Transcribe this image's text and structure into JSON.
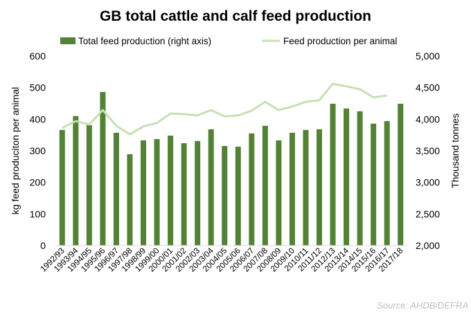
{
  "chart_data": {
    "type": "bar+line",
    "title": "GB total cattle and calf feed production",
    "ylabel_left": "kg feed produciton per animal",
    "ylabel_right": "Thousand  tonnes",
    "ylim_left": [
      0,
      600
    ],
    "ylim_right": [
      2000,
      5000
    ],
    "yticks_left": [
      "0",
      "100",
      "200",
      "300",
      "400",
      "500",
      "600"
    ],
    "yticks_right": [
      "2,000",
      "2,500",
      "3,000",
      "3,500",
      "4,000",
      "4,500",
      "5,000"
    ],
    "legend_position": "top",
    "grid": false,
    "categories": [
      "1992/93",
      "1993/94",
      "1994/95",
      "1995/96",
      "1996/97",
      "1997/98",
      "1998/99",
      "1999/00",
      "2000/01",
      "2001/02",
      "2002/03",
      "2003/04",
      "2004/05",
      "2005/06",
      "2006/07",
      "2007/08",
      "2008/09",
      "2009/10",
      "2010/11",
      "2011/12",
      "2012/13",
      "2013/14",
      "2014/15",
      "2015/16",
      "2016/17",
      "2017/18"
    ],
    "series": [
      {
        "name": "Total feed production (right axis)",
        "type": "bar",
        "axis": "right",
        "color": "#538135",
        "values": [
          3830,
          4050,
          3905,
          4430,
          3785,
          3445,
          3665,
          3685,
          3740,
          3620,
          3655,
          3840,
          3575,
          3565,
          3775,
          3895,
          3665,
          3785,
          3830,
          3840,
          4245,
          4170,
          4125,
          3930,
          3970,
          4245
        ]
      },
      {
        "name": "Feed production per animal",
        "type": "line",
        "axis": "left",
        "color": "#c5e0b4",
        "values": [
          372,
          394,
          383,
          429,
          379,
          352,
          377,
          388,
          418,
          416,
          412,
          429,
          409,
          412,
          427,
          455,
          429,
          440,
          455,
          460,
          512,
          504,
          495,
          469,
          475,
          null
        ]
      }
    ],
    "source": "Source: AHDB/DEFRA"
  }
}
